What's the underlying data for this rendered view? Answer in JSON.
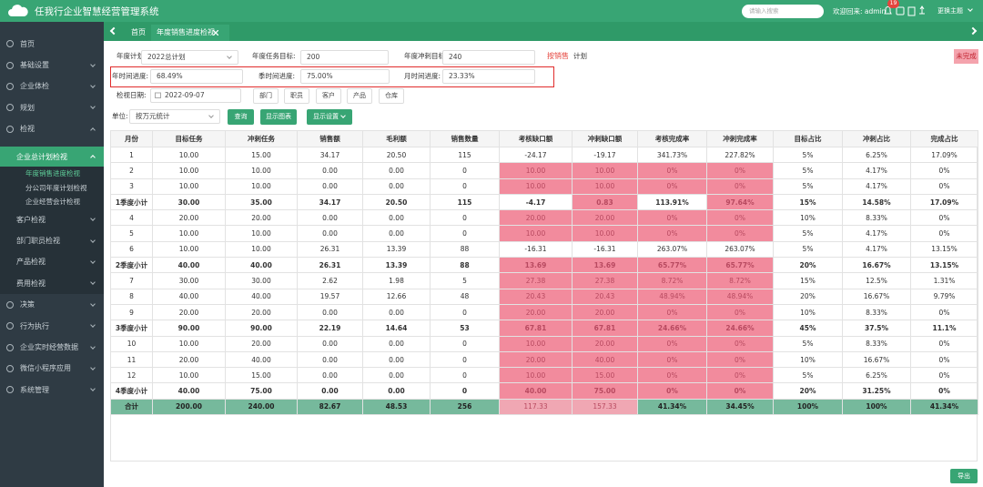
{
  "header": {
    "title": "任我行企业智慧经营管理系统",
    "search_placeholder": "请输入搜索",
    "welcome": "欢迎回来: admin",
    "badge": "19",
    "theme": "更换主题"
  },
  "sidebar": {
    "items": [
      {
        "label": "首页"
      },
      {
        "label": "基础设置"
      },
      {
        "label": "企业体检"
      },
      {
        "label": "规划"
      },
      {
        "label": "检视",
        "children": [
          {
            "label": "企业总计划检视",
            "children": [
              "年度销售进度检视",
              "分公司年度计划检视",
              "企业经营会计检视"
            ]
          },
          {
            "label": "客户检视"
          },
          {
            "label": "部门职员检视"
          },
          {
            "label": "产品检视"
          },
          {
            "label": "费用检视"
          }
        ]
      },
      {
        "label": "决策"
      },
      {
        "label": "行为执行"
      },
      {
        "label": "企业实时经营数据"
      },
      {
        "label": "微信小程序应用"
      },
      {
        "label": "系统管理"
      }
    ]
  },
  "tabs": {
    "items": [
      "首页",
      "年度销售进度检视"
    ]
  },
  "form": {
    "plan_label": "年度计划:",
    "plan_value": "2022总计划",
    "target_label": "年度任务目标:",
    "target_value": "200",
    "sprint_label": "年度冲刺目标:",
    "sprint_value": "240",
    "by_sales": "按销售",
    "plan_text": "计划",
    "status": "未完成",
    "year_label": "年时间进度:",
    "year_value": "68.49%",
    "quarter_label": "季时间进度:",
    "quarter_value": "75.00%",
    "month_label": "月时间进度:",
    "month_value": "23.33%",
    "date_label": "检视日期:",
    "date_value": "2022-09-07",
    "filters": [
      "部门",
      "职员",
      "客户",
      "产品",
      "仓库"
    ],
    "unit_label": "单位:",
    "unit_value": "按万元统计",
    "query": "查询",
    "show_chart": "显示图表",
    "show_settings": "显示设置"
  },
  "table": {
    "headers": [
      "月份",
      "目标任务",
      "冲刺任务",
      "销售额",
      "毛利额",
      "销售数量",
      "考核缺口额",
      "冲刺缺口额",
      "考核完成率",
      "冲刺完成率",
      "目标占比",
      "冲刺占比",
      "完成占比"
    ],
    "rows": [
      [
        "1",
        "10.00",
        "15.00",
        "34.17",
        "20.50",
        "115",
        "-24.17",
        "-19.17",
        "341.73%",
        "227.82%",
        "5%",
        "6.25%",
        "17.09%"
      ],
      [
        "2",
        "10.00",
        "10.00",
        "0.00",
        "0.00",
        "0",
        "10.00",
        "10.00",
        "0%",
        "0%",
        "5%",
        "4.17%",
        "0%"
      ],
      [
        "3",
        "10.00",
        "10.00",
        "0.00",
        "0.00",
        "0",
        "10.00",
        "10.00",
        "0%",
        "0%",
        "5%",
        "4.17%",
        "0%"
      ],
      [
        "1季度小计",
        "30.00",
        "35.00",
        "34.17",
        "20.50",
        "115",
        "-4.17",
        "0.83",
        "113.91%",
        "97.64%",
        "15%",
        "14.58%",
        "17.09%"
      ],
      [
        "4",
        "20.00",
        "20.00",
        "0.00",
        "0.00",
        "0",
        "20.00",
        "20.00",
        "0%",
        "0%",
        "10%",
        "8.33%",
        "0%"
      ],
      [
        "5",
        "10.00",
        "10.00",
        "0.00",
        "0.00",
        "0",
        "10.00",
        "10.00",
        "0%",
        "0%",
        "5%",
        "4.17%",
        "0%"
      ],
      [
        "6",
        "10.00",
        "10.00",
        "26.31",
        "13.39",
        "88",
        "-16.31",
        "-16.31",
        "263.07%",
        "263.07%",
        "5%",
        "4.17%",
        "13.15%"
      ],
      [
        "2季度小计",
        "40.00",
        "40.00",
        "26.31",
        "13.39",
        "88",
        "13.69",
        "13.69",
        "65.77%",
        "65.77%",
        "20%",
        "16.67%",
        "13.15%"
      ],
      [
        "7",
        "30.00",
        "30.00",
        "2.62",
        "1.98",
        "5",
        "27.38",
        "27.38",
        "8.72%",
        "8.72%",
        "15%",
        "12.5%",
        "1.31%"
      ],
      [
        "8",
        "40.00",
        "40.00",
        "19.57",
        "12.66",
        "48",
        "20.43",
        "20.43",
        "48.94%",
        "48.94%",
        "20%",
        "16.67%",
        "9.79%"
      ],
      [
        "9",
        "20.00",
        "20.00",
        "0.00",
        "0.00",
        "0",
        "20.00",
        "20.00",
        "0%",
        "0%",
        "10%",
        "8.33%",
        "0%"
      ],
      [
        "3季度小计",
        "90.00",
        "90.00",
        "22.19",
        "14.64",
        "53",
        "67.81",
        "67.81",
        "24.66%",
        "24.66%",
        "45%",
        "37.5%",
        "11.1%"
      ],
      [
        "10",
        "10.00",
        "20.00",
        "0.00",
        "0.00",
        "0",
        "10.00",
        "20.00",
        "0%",
        "0%",
        "5%",
        "8.33%",
        "0%"
      ],
      [
        "11",
        "20.00",
        "40.00",
        "0.00",
        "0.00",
        "0",
        "20.00",
        "40.00",
        "0%",
        "0%",
        "10%",
        "16.67%",
        "0%"
      ],
      [
        "12",
        "10.00",
        "15.00",
        "0.00",
        "0.00",
        "0",
        "10.00",
        "15.00",
        "0%",
        "0%",
        "5%",
        "6.25%",
        "0%"
      ],
      [
        "4季度小计",
        "40.00",
        "75.00",
        "0.00",
        "0.00",
        "0",
        "40.00",
        "75.00",
        "0%",
        "0%",
        "20%",
        "31.25%",
        "0%"
      ],
      [
        "合计",
        "200.00",
        "240.00",
        "82.67",
        "48.53",
        "256",
        "117.33",
        "157.33",
        "41.34%",
        "34.45%",
        "100%",
        "100%",
        "41.34%"
      ]
    ]
  },
  "export": "导出"
}
